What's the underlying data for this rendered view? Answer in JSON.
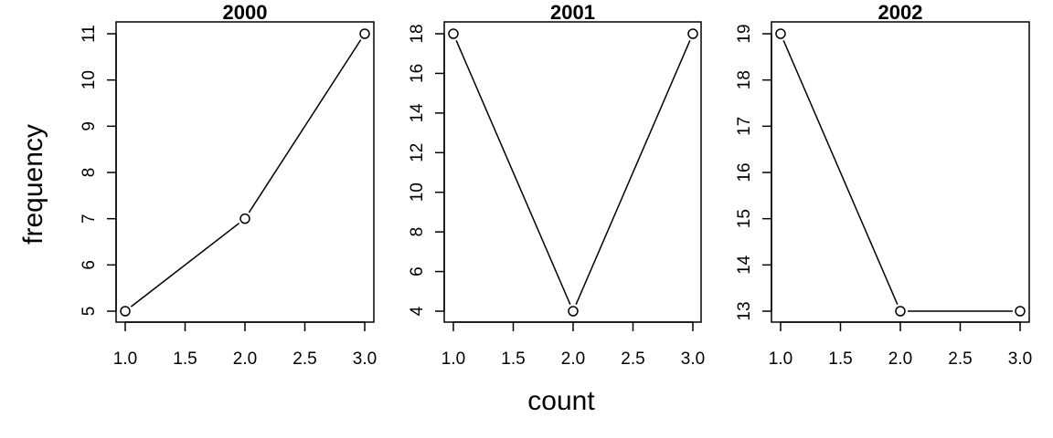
{
  "figure": {
    "xlabel": "count",
    "ylabel": "frequency"
  },
  "chart_data": [
    {
      "type": "line",
      "title": "2000",
      "x": [
        1,
        2,
        3
      ],
      "values": [
        5,
        7,
        11
      ],
      "xlim": [
        1,
        3
      ],
      "ylim": [
        5,
        11
      ],
      "xticks": [
        "1.0",
        "1.5",
        "2.0",
        "2.5",
        "3.0"
      ],
      "yticks": [
        "5",
        "6",
        "7",
        "8",
        "9",
        "10",
        "11"
      ],
      "marker": "open-circle",
      "color": "#000000",
      "grid": false
    },
    {
      "type": "line",
      "title": "2001",
      "x": [
        1,
        2,
        3
      ],
      "values": [
        18,
        4,
        18
      ],
      "xlim": [
        1,
        3
      ],
      "ylim": [
        4,
        18
      ],
      "xticks": [
        "1.0",
        "1.5",
        "2.0",
        "2.5",
        "3.0"
      ],
      "yticks": [
        "4",
        "6",
        "8",
        "10",
        "12",
        "14",
        "16",
        "18"
      ],
      "marker": "open-circle",
      "color": "#000000",
      "grid": false
    },
    {
      "type": "line",
      "title": "2002",
      "x": [
        1,
        2,
        3
      ],
      "values": [
        19,
        13,
        13
      ],
      "xlim": [
        1,
        3
      ],
      "ylim": [
        13,
        19
      ],
      "xticks": [
        "1.0",
        "1.5",
        "2.0",
        "2.5",
        "3.0"
      ],
      "yticks": [
        "13",
        "14",
        "15",
        "16",
        "17",
        "18",
        "19"
      ],
      "marker": "open-circle",
      "color": "#000000",
      "grid": false
    }
  ]
}
